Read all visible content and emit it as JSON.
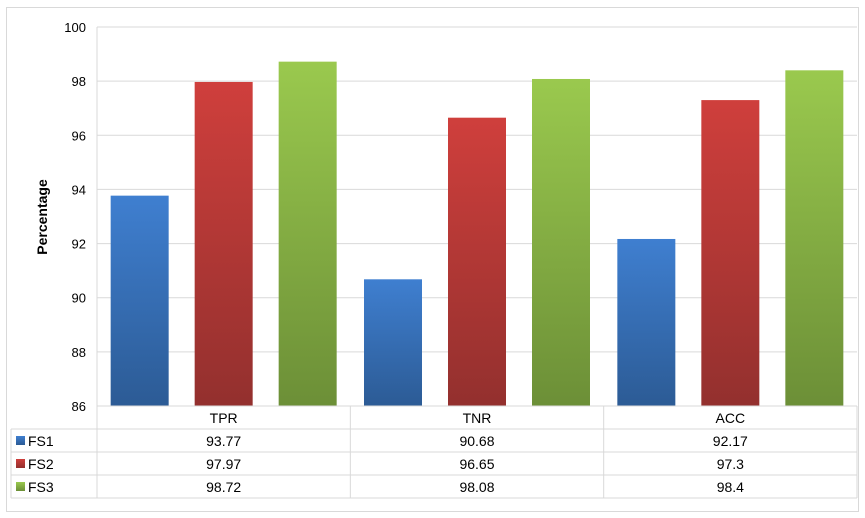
{
  "chart_data": {
    "type": "bar",
    "title": "",
    "xlabel": "",
    "ylabel": "Percentage",
    "ylim": [
      86,
      100
    ],
    "yticks": [
      "86",
      "88",
      "90",
      "92",
      "94",
      "96",
      "98",
      "100"
    ],
    "grid": true,
    "legend": "data-table",
    "categories": [
      "TPR",
      "TNR",
      "ACC"
    ],
    "series": [
      {
        "name": "FS1",
        "color": "#4a7ebb",
        "values": [
          93.77,
          90.68,
          92.17
        ],
        "labels": [
          "93.77",
          "90.68",
          "92.17"
        ]
      },
      {
        "name": "FS2",
        "color": "#be4b48",
        "values": [
          97.97,
          96.65,
          97.3
        ],
        "labels": [
          "97.97",
          "96.65",
          "97.3"
        ]
      },
      {
        "name": "FS3",
        "color": "#98b954",
        "values": [
          98.72,
          98.08,
          98.4
        ],
        "labels": [
          "98.72",
          "98.08",
          "98.4"
        ]
      }
    ]
  }
}
